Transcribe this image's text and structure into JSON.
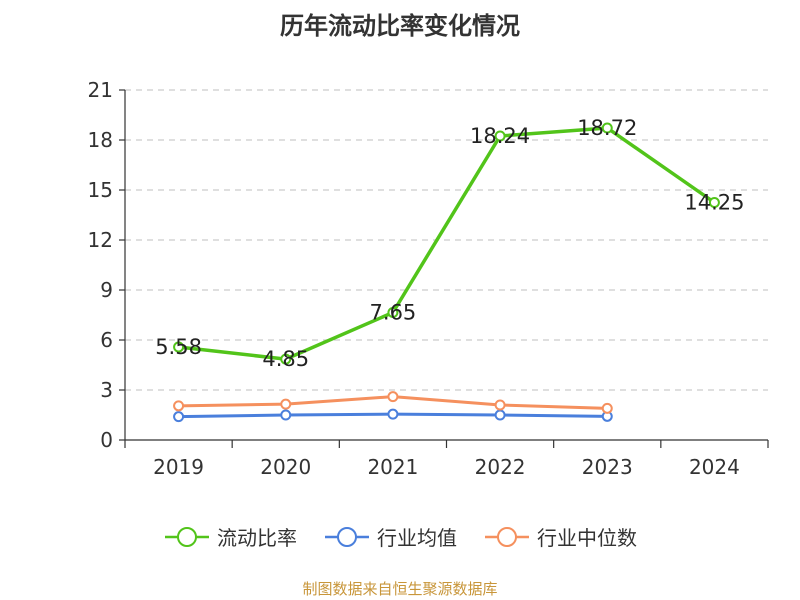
{
  "chart_data": {
    "type": "line",
    "title": "历年流动比率变化情况",
    "categories": [
      "2019",
      "2020",
      "2021",
      "2022",
      "2023",
      "2024"
    ],
    "ylim": [
      0,
      21
    ],
    "yticks": [
      0,
      3,
      6,
      9,
      12,
      15,
      18,
      21
    ],
    "grid": true,
    "legend_position": "bottom",
    "series": [
      {
        "name": "流动比率",
        "color": "#52c41a",
        "values": [
          5.58,
          4.85,
          7.65,
          18.24,
          18.72,
          14.25
        ],
        "labels": [
          "5.58",
          "4.85",
          "7.65",
          "18.24",
          "18.72",
          "14.25"
        ]
      },
      {
        "name": "行业均值",
        "color": "#4a7fdc",
        "values": [
          1.4,
          1.5,
          1.55,
          1.5,
          1.42,
          null
        ]
      },
      {
        "name": "行业中位数",
        "color": "#f5905e",
        "values": [
          2.05,
          2.15,
          2.6,
          2.1,
          1.9,
          null
        ]
      }
    ]
  },
  "footer": {
    "source": "制图数据来自恒生聚源数据库"
  }
}
